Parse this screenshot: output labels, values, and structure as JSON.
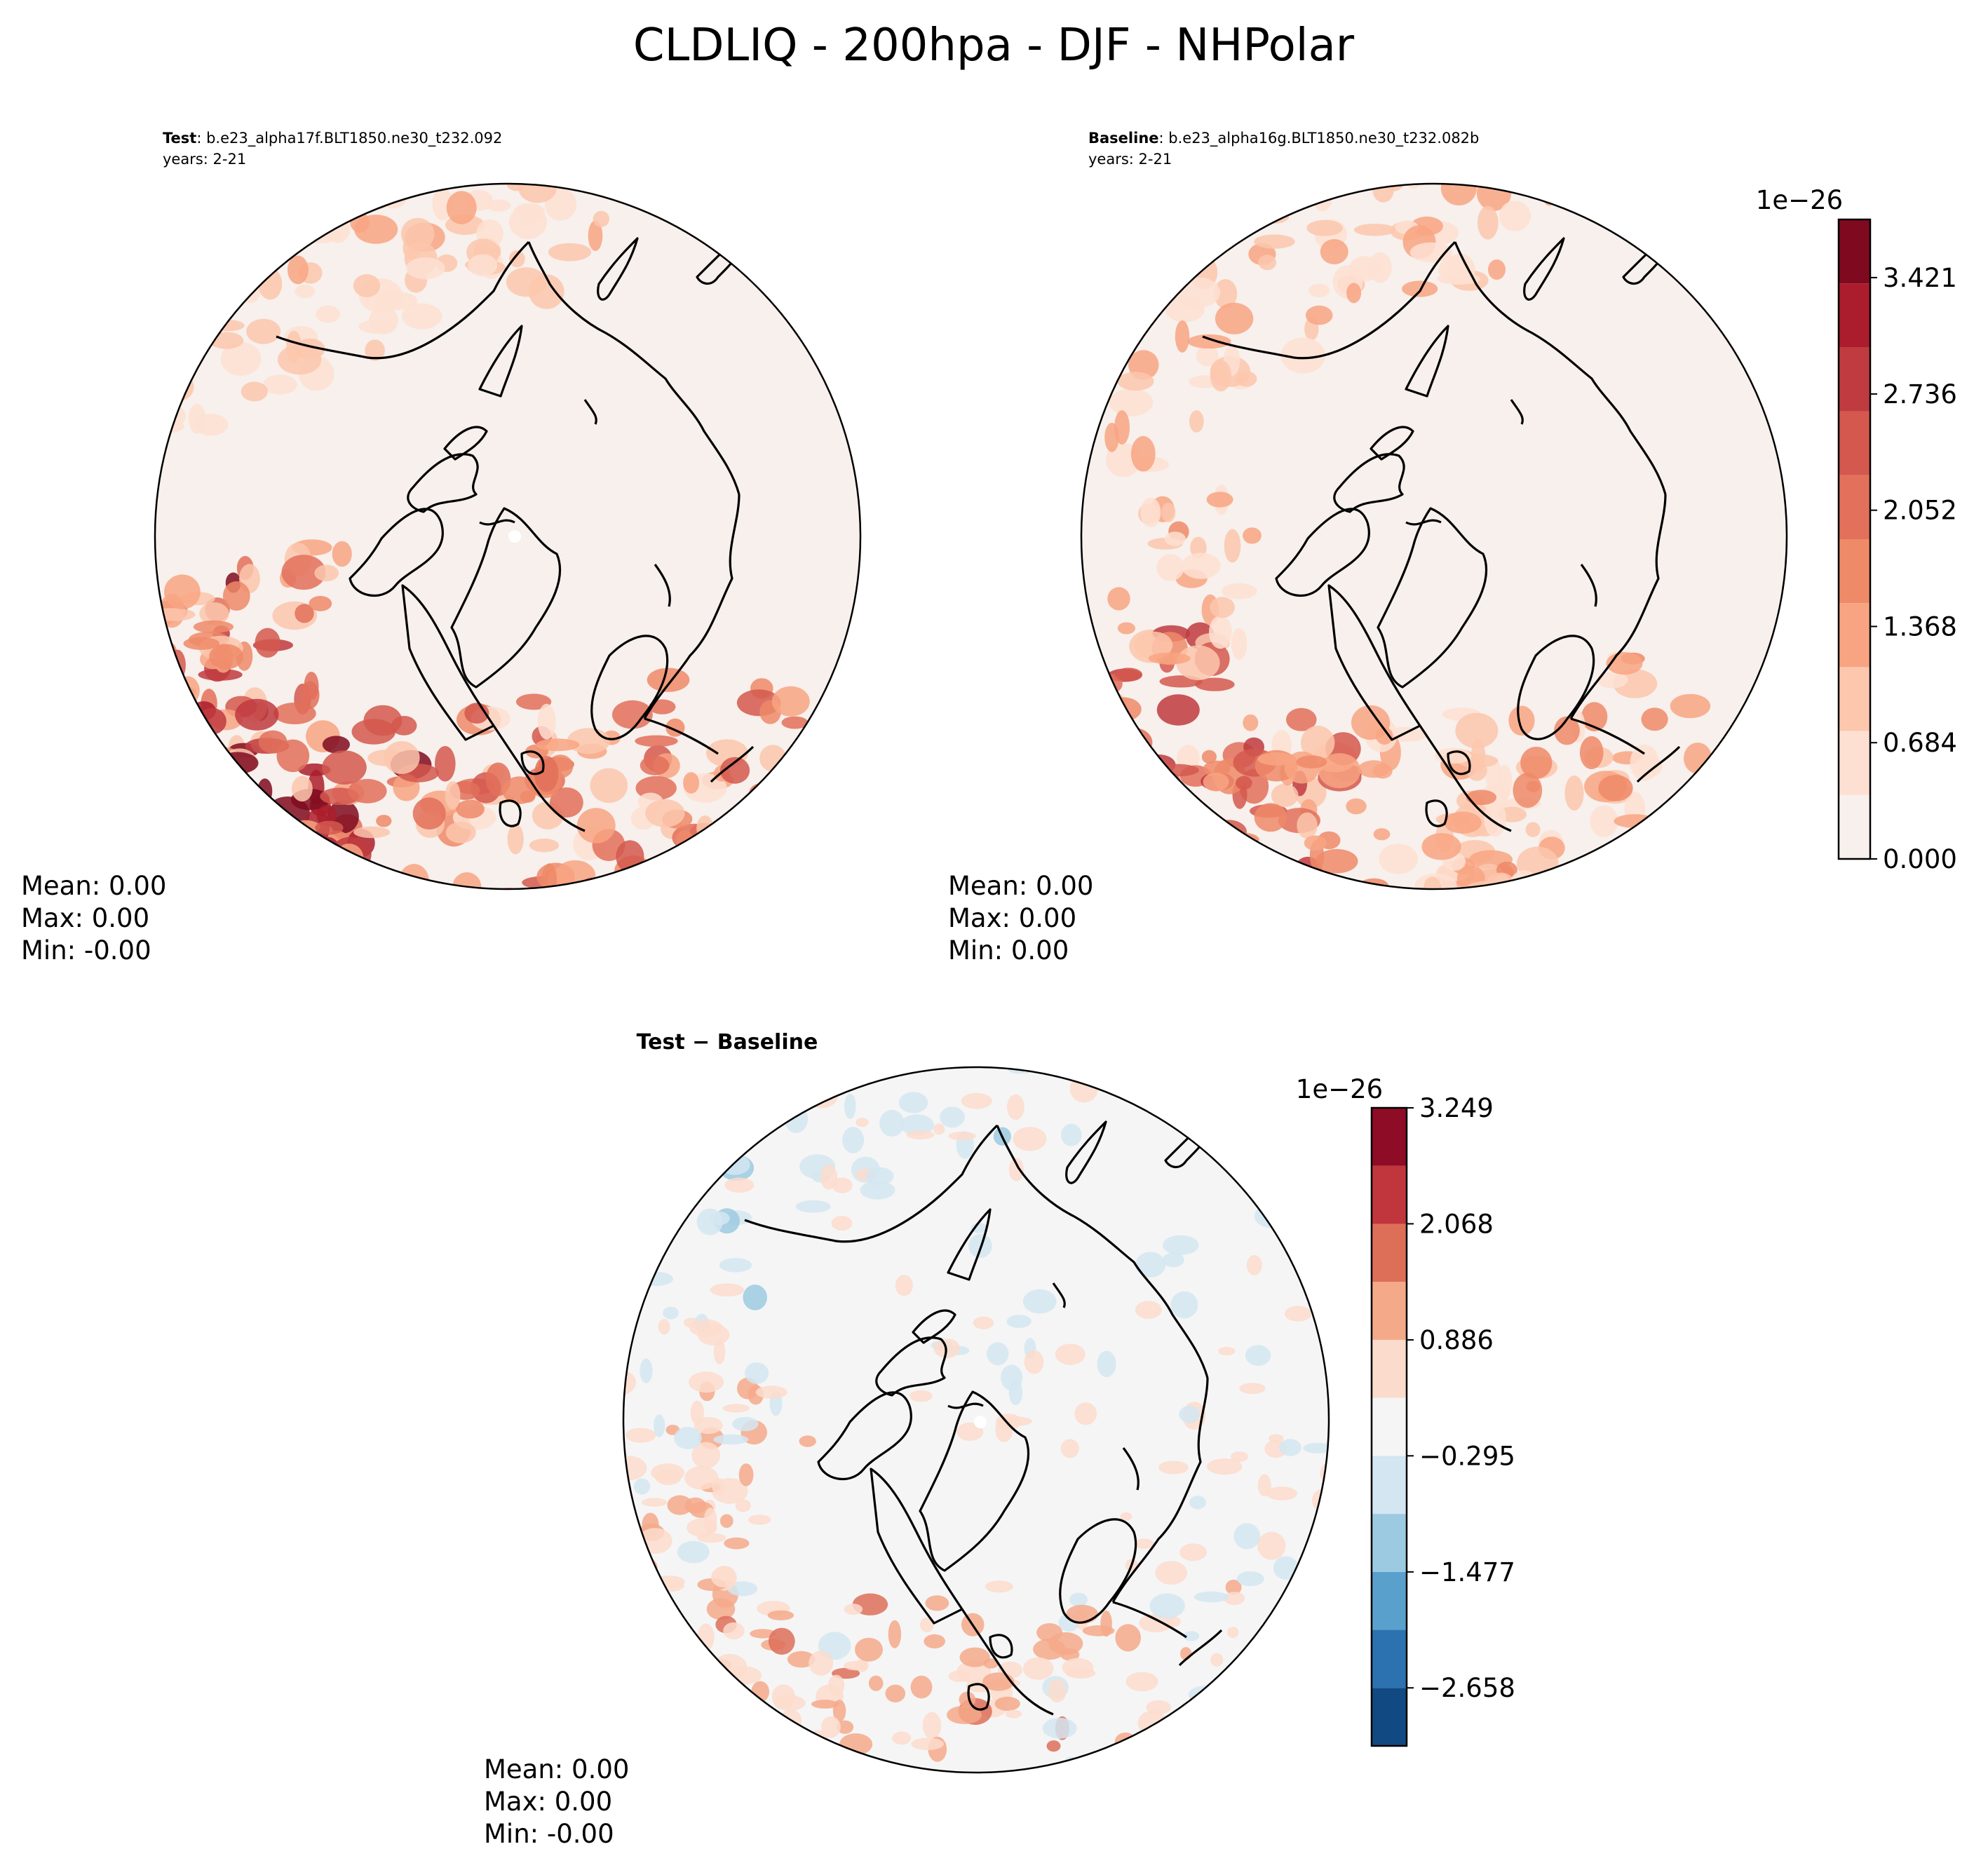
{
  "figure": {
    "title": "CLDLIQ - 200hpa - DJF - NHPolar"
  },
  "colors": {
    "land_outline": "#000000",
    "seq_cmap": [
      "#f7f0ec",
      "#fde0d2",
      "#fcc7ad",
      "#f8a482",
      "#ef8a68",
      "#e2705a",
      "#d4584d",
      "#bf3b3f",
      "#ab1d2c",
      "#7f0a1f"
    ],
    "div_cmap": [
      "#114a82",
      "#2c72b0",
      "#5aa0cc",
      "#9ccae1",
      "#d3e6f1",
      "#f5f5f5",
      "#fbdccc",
      "#f4a989",
      "#dd6f59",
      "#c0363c",
      "#8e0c25"
    ]
  },
  "chart_data": [
    {
      "type": "heatmap",
      "projection": "north-polar-stereographic",
      "panel": "test",
      "label_bold": "Test",
      "label_rest": ": b.e23_alpha17f.BLT1850.ne30_t232.092",
      "years": "years: 2-21",
      "stats": {
        "mean": "Mean:  0.00",
        "max": "Max:  0.00",
        "min": "Min: -0.00"
      },
      "values_1e26": {
        "north_atlantic_europe": 1.7,
        "western_europe_coast": 2.6,
        "north_pacific": 0.9,
        "arctic_ocean": 0.05,
        "siberia": 0.1,
        "north_america": 0.15
      }
    },
    {
      "type": "heatmap",
      "projection": "north-polar-stereographic",
      "panel": "baseline",
      "label_bold": "Baseline",
      "label_rest": ": b.e23_alpha16g.BLT1850.ne30_t232.082b",
      "years": "years: 2-21",
      "stats": {
        "mean": "Mean:  0.00",
        "max": "Max:  0.00",
        "min": "Min:  0.00"
      },
      "values_1e26": {
        "north_atlantic_europe": 1.2,
        "western_europe_coast": 2.0,
        "north_pacific": 1.0,
        "arctic_ocean": 0.05,
        "siberia": 0.1,
        "north_america": 0.1
      },
      "colorbar": {
        "exponent": "1e−26",
        "range": [
          0.0,
          3.763
        ],
        "levels": 10,
        "ticks": [
          "0.000",
          "0.684",
          "1.368",
          "2.052",
          "2.736",
          "3.421"
        ],
        "tick_values": [
          0.0,
          0.684,
          1.368,
          2.052,
          2.736,
          3.421
        ]
      }
    },
    {
      "type": "heatmap",
      "projection": "north-polar-stereographic",
      "panel": "difference",
      "title": "Test − Baseline",
      "stats": {
        "mean": "Mean:  0.00",
        "max": "Max:  0.00",
        "min": "Min: -0.00"
      },
      "colorbar": {
        "exponent": "1e−26",
        "range": [
          -3.249,
          3.249
        ],
        "levels": 11,
        "ticks": [
          "3.249",
          "2.068",
          "0.886",
          "−0.295",
          "−1.477",
          "−2.658"
        ],
        "tick_values": [
          3.249,
          2.068,
          0.886,
          -0.295,
          -1.477,
          -2.658
        ]
      }
    }
  ]
}
